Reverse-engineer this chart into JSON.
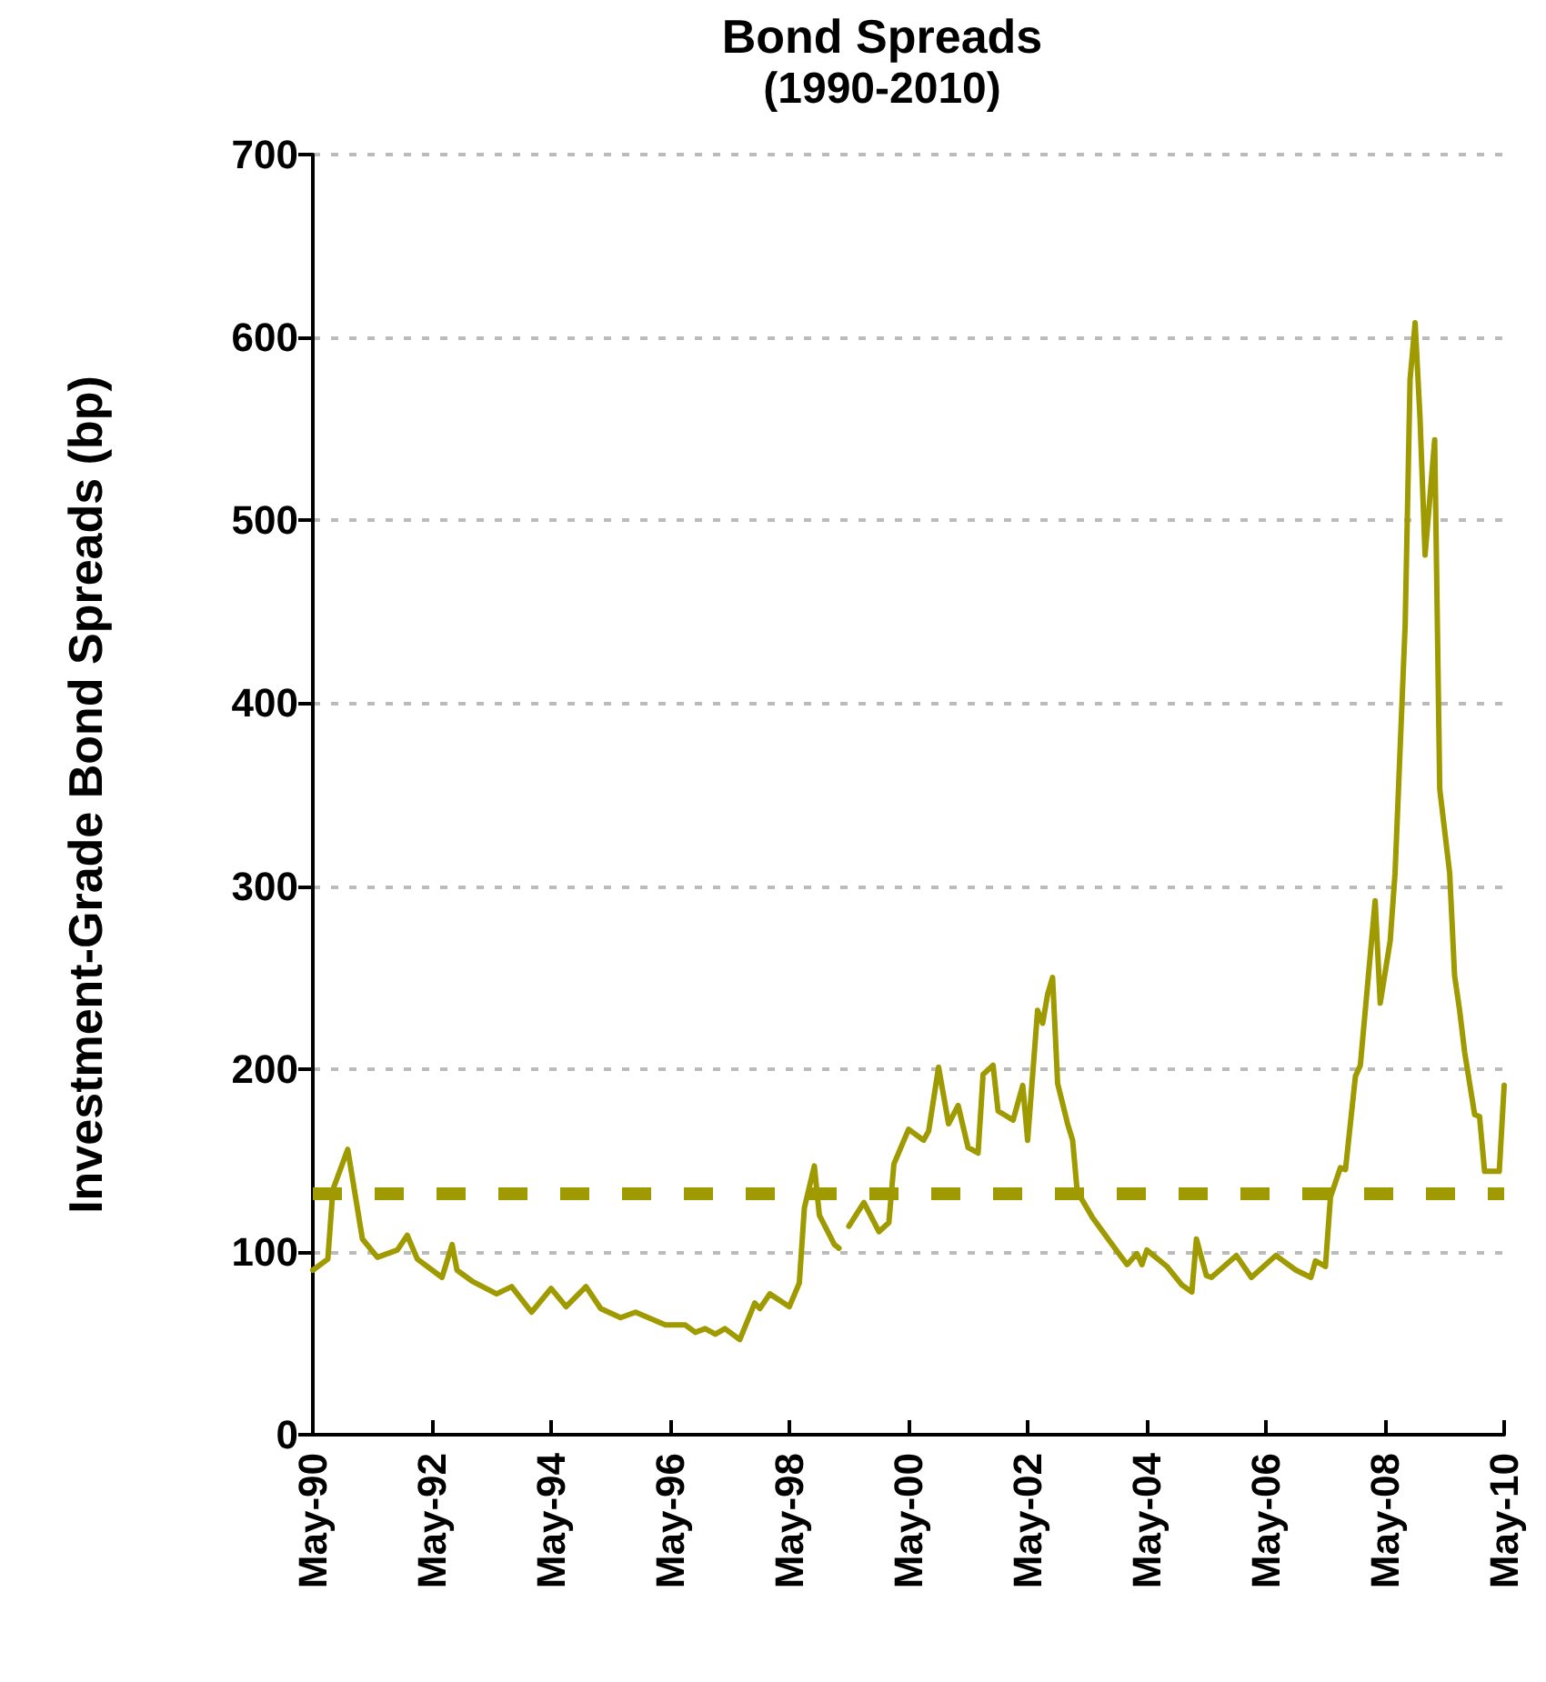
{
  "chart_data": {
    "type": "line",
    "title": "Bond Spreads",
    "subtitle": "(1990-2010)",
    "ylabel": "Investment-Grade Bond Spreads (bp)",
    "x": [
      "1990-05",
      "1990-08",
      "1990-09",
      "1990-12",
      "1991-03",
      "1991-06",
      "1991-10",
      "1991-12",
      "1992-02",
      "1992-07",
      "1992-09",
      "1992-10",
      "1993-01",
      "1993-06",
      "1993-09",
      "1994-01",
      "1994-05",
      "1994-08",
      "1994-12",
      "1995-03",
      "1995-07",
      "1995-10",
      "1996-04",
      "1996-08",
      "1996-10",
      "1996-12",
      "1997-02",
      "1997-04",
      "1997-07",
      "1997-10",
      "1997-11",
      "1998-01",
      "1998-05",
      "1998-07",
      "1998-08",
      "1998-10",
      "1998-11",
      "1999-02",
      "1999-03",
      "1999-04",
      "1999-05",
      "1999-08",
      "1999-11",
      "2000-01",
      "2000-02",
      "2000-05",
      "2000-08",
      "2000-09",
      "2000-11",
      "2001-01",
      "2001-03",
      "2001-05",
      "2001-07",
      "2001-08",
      "2001-10",
      "2001-11",
      "2002-02",
      "2002-04",
      "2002-05",
      "2002-07",
      "2002-08",
      "2002-09",
      "2002-10",
      "2002-11",
      "2003-01",
      "2003-02",
      "2003-03",
      "2003-06",
      "2003-10",
      "2004-01",
      "2004-03",
      "2004-04",
      "2004-05",
      "2004-09",
      "2004-12",
      "2005-02",
      "2005-03",
      "2005-05",
      "2005-06",
      "2005-11",
      "2006-02",
      "2006-07",
      "2006-11",
      "2007-02",
      "2007-03",
      "2007-05",
      "2007-06",
      "2007-08",
      "2007-09",
      "2007-11",
      "2007-12",
      "2008-03",
      "2008-04",
      "2008-06",
      "2008-07",
      "2008-09",
      "2008-10",
      "2008-11",
      "2008-12",
      "2009-01",
      "2009-03",
      "2009-04",
      "2009-06",
      "2009-07",
      "2009-08",
      "2009-09",
      "2009-11",
      "2009-12",
      "2010-01",
      "2010-04",
      "2010-05"
    ],
    "series": [
      {
        "color": "#9e9a00",
        "values": [
          90,
          96,
          134,
          156,
          107,
          97,
          101,
          109,
          96,
          86,
          104,
          90,
          84,
          77,
          81,
          67,
          80,
          70,
          81,
          69,
          64,
          67,
          60,
          60,
          56,
          58,
          55,
          58,
          52,
          72,
          69,
          77,
          70,
          83,
          124,
          147,
          120,
          104,
          102,
          null,
          114,
          127,
          111,
          116,
          148,
          167,
          161,
          166,
          201,
          170,
          180,
          157,
          154,
          197,
          202,
          177,
          172,
          191,
          161,
          232,
          225,
          241,
          250,
          192,
          170,
          161,
          133,
          119,
          104,
          93,
          99,
          93,
          101,
          92,
          82,
          78,
          107,
          87,
          86,
          98,
          86,
          98,
          90,
          86,
          95,
          92,
          130,
          146,
          145,
          196,
          202,
          292,
          236,
          270,
          307,
          443,
          577,
          608,
          556,
          481,
          544,
          353,
          307,
          251,
          232,
          209,
          175,
          174,
          144,
          144,
          191
        ]
      }
    ],
    "xlim": [
      "1990-05",
      "2010-05"
    ],
    "xticks": [
      {
        "value": "1990-05",
        "label": "May-90"
      },
      {
        "value": "1992-05",
        "label": "May-92"
      },
      {
        "value": "1994-05",
        "label": "May-94"
      },
      {
        "value": "1996-05",
        "label": "May-96"
      },
      {
        "value": "1998-05",
        "label": "May-98"
      },
      {
        "value": "2000-05",
        "label": "May-00"
      },
      {
        "value": "2002-05",
        "label": "May-02"
      },
      {
        "value": "2004-05",
        "label": "May-04"
      },
      {
        "value": "2006-05",
        "label": "May-06"
      },
      {
        "value": "2008-05",
        "label": "May-08"
      },
      {
        "value": "2010-05",
        "label": "May-10"
      }
    ],
    "ylim": [
      0,
      700
    ],
    "yticks": [
      0,
      100,
      200,
      300,
      400,
      500,
      600,
      700
    ],
    "grid": "y",
    "marker": "none",
    "line_style": "solid",
    "ref_lines": [
      {
        "axis": "y",
        "value": 132,
        "color": "#9e9a00",
        "line_style": "dashed"
      }
    ]
  }
}
